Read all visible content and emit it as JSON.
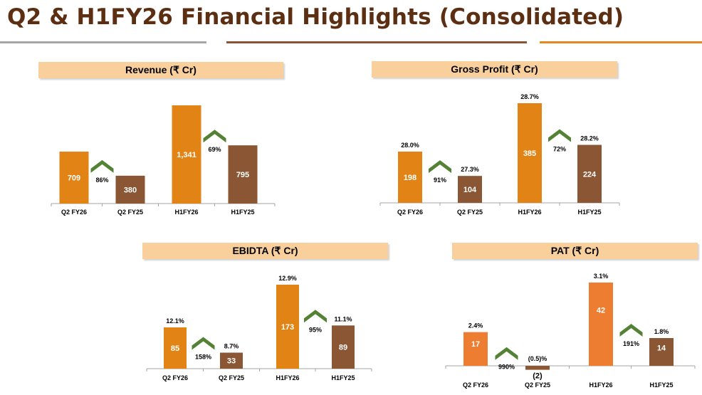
{
  "header": {
    "title": "Q2 & H1FY26 Financial Highlights (Consolidated)",
    "rule_colors": [
      "#a6a6a6",
      "#8b5434",
      "#e28a1f"
    ]
  },
  "colors": {
    "current": "#e28415",
    "previous": "#8b5634",
    "pat_current": "#ed7d31",
    "growth_arrow": "#548235",
    "title_bg": "#f9cf9c"
  },
  "chart_data": [
    {
      "id": "revenue",
      "type": "bar",
      "title": "Revenue (₹ Cr)",
      "categories": [
        "Q2 FY26",
        "Q2 FY25",
        "H1FY26",
        "H1FY25"
      ],
      "values": [
        709,
        380,
        1341,
        795
      ],
      "value_labels": [
        "709",
        "380",
        "1,341",
        "795"
      ],
      "margins": [
        null,
        null,
        null,
        null
      ],
      "growth": [
        {
          "between": [
            0,
            1
          ],
          "label": "86%"
        },
        {
          "between": [
            2,
            3
          ],
          "label": "69%"
        }
      ],
      "ylim": [
        0,
        1341
      ],
      "legend": "none"
    },
    {
      "id": "gross-profit",
      "type": "bar",
      "title": "Gross Profit (₹ Cr)",
      "categories": [
        "Q2 FY26",
        "Q2 FY25",
        "H1FY26",
        "H1FY25"
      ],
      "values": [
        198,
        104,
        385,
        224
      ],
      "value_labels": [
        "198",
        "104",
        "385",
        "224"
      ],
      "margins": [
        "28.0%",
        "27.3%",
        "28.7%",
        "28.2%"
      ],
      "growth": [
        {
          "between": [
            0,
            1
          ],
          "label": "91%"
        },
        {
          "between": [
            2,
            3
          ],
          "label": "72%"
        }
      ],
      "ylim": [
        0,
        385
      ],
      "legend": "none"
    },
    {
      "id": "ebidta",
      "type": "bar",
      "title": "EBIDTA (₹ Cr)",
      "categories": [
        "Q2 FY26",
        "Q2 FY25",
        "H1FY26",
        "H1FY25"
      ],
      "values": [
        85,
        33,
        173,
        89
      ],
      "value_labels": [
        "85",
        "33",
        "173",
        "89"
      ],
      "margins": [
        "12.1%",
        "8.7%",
        "12.9%",
        "11.1%"
      ],
      "growth": [
        {
          "between": [
            0,
            1
          ],
          "label": "158%"
        },
        {
          "between": [
            2,
            3
          ],
          "label": "95%"
        }
      ],
      "ylim": [
        0,
        173
      ],
      "legend": "none"
    },
    {
      "id": "pat",
      "type": "bar",
      "title": "PAT (₹ Cr)",
      "categories": [
        "Q2 FY26",
        "Q2 FY25",
        "H1FY26",
        "H1FY25"
      ],
      "values": [
        17,
        -2,
        42,
        14
      ],
      "value_labels": [
        "17",
        "(2)",
        "42",
        "14"
      ],
      "margins": [
        "2.4%",
        "(0.5)%",
        "3.1%",
        "1.8%"
      ],
      "growth": [
        {
          "between": [
            0,
            1
          ],
          "label": "990%"
        },
        {
          "between": [
            2,
            3
          ],
          "label": "191%"
        }
      ],
      "ylim": [
        -2,
        42
      ],
      "legend": "none"
    }
  ]
}
